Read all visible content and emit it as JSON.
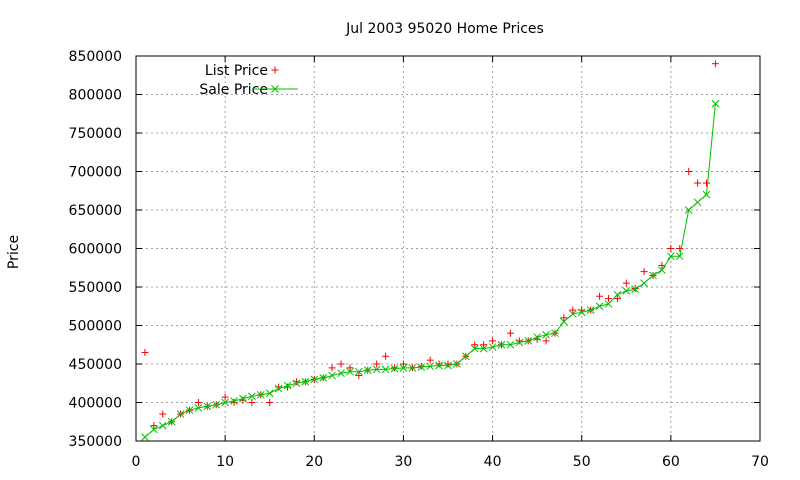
{
  "chart_data": {
    "type": "line",
    "title": "Jul 2003 95020 Home Prices",
    "xlabel": "",
    "ylabel": "Price",
    "xlim": [
      0,
      70
    ],
    "ylim": [
      350000,
      850000
    ],
    "x_ticks": [
      0,
      10,
      20,
      30,
      40,
      50,
      60,
      70
    ],
    "y_ticks": [
      350000,
      400000,
      450000,
      500000,
      550000,
      600000,
      650000,
      700000,
      750000,
      800000,
      850000
    ],
    "grid": true,
    "legend_position": "top-left",
    "series": [
      {
        "name": "List Price",
        "style": "points",
        "marker": "plus",
        "color": "#ff0000",
        "x": [
          1,
          2,
          3,
          4,
          5,
          6,
          7,
          8,
          9,
          10,
          11,
          12,
          13,
          14,
          15,
          16,
          17,
          18,
          19,
          20,
          21,
          22,
          23,
          24,
          25,
          26,
          27,
          28,
          29,
          30,
          31,
          32,
          33,
          34,
          35,
          36,
          37,
          38,
          39,
          40,
          41,
          42,
          43,
          44,
          45,
          46,
          47,
          48,
          49,
          50,
          51,
          52,
          53,
          54,
          55,
          56,
          57,
          58,
          59,
          60,
          61,
          62,
          63,
          64,
          65
        ],
        "y": [
          465000,
          370000,
          385000,
          375000,
          385000,
          390000,
          400000,
          395000,
          397000,
          407000,
          400000,
          403000,
          400000,
          410000,
          400000,
          420000,
          420000,
          427000,
          427000,
          430000,
          432000,
          445000,
          450000,
          445000,
          435000,
          442000,
          450000,
          460000,
          445000,
          450000,
          445000,
          447000,
          455000,
          450000,
          450000,
          450000,
          460000,
          475000,
          475000,
          480000,
          475000,
          490000,
          480000,
          480000,
          482000,
          480000,
          490000,
          510000,
          520000,
          520000,
          520000,
          538000,
          535000,
          535000,
          555000,
          548000,
          570000,
          565000,
          578000,
          600000,
          600000,
          700000,
          685000,
          685000,
          840000
        ]
      },
      {
        "name": "Sale Price",
        "style": "linespoints",
        "marker": "cross",
        "color": "#00c000",
        "x": [
          1,
          2,
          3,
          4,
          5,
          6,
          7,
          8,
          9,
          10,
          11,
          12,
          13,
          14,
          15,
          16,
          17,
          18,
          19,
          20,
          21,
          22,
          23,
          24,
          25,
          26,
          27,
          28,
          29,
          30,
          31,
          32,
          33,
          34,
          35,
          36,
          37,
          38,
          39,
          40,
          41,
          42,
          43,
          44,
          45,
          46,
          47,
          48,
          49,
          50,
          51,
          52,
          53,
          54,
          55,
          56,
          57,
          58,
          59,
          60,
          61,
          62,
          63,
          64,
          65
        ],
        "y": [
          355000,
          365000,
          370000,
          375000,
          385000,
          390000,
          393000,
          395000,
          397000,
          400000,
          402000,
          405000,
          408000,
          410000,
          412000,
          418000,
          422000,
          425000,
          427000,
          430000,
          432000,
          435000,
          438000,
          440000,
          440000,
          442000,
          443000,
          443000,
          444000,
          445000,
          445000,
          446000,
          447000,
          448000,
          448000,
          450000,
          460000,
          470000,
          470000,
          472000,
          475000,
          475000,
          478000,
          480000,
          485000,
          488000,
          490000,
          505000,
          515000,
          517000,
          520000,
          525000,
          528000,
          540000,
          545000,
          547000,
          555000,
          565000,
          572000,
          590000,
          590000,
          650000,
          660000,
          670000,
          788000
        ]
      }
    ]
  }
}
